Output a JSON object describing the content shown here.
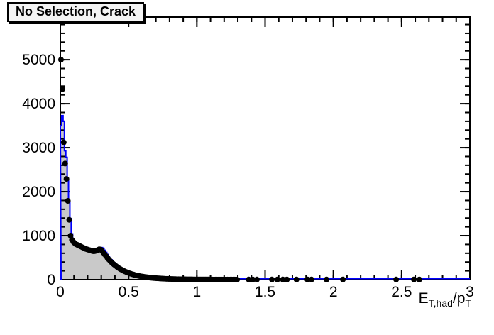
{
  "title": "No Selection, Crack",
  "colors": {
    "background": "#ffffff",
    "frame": "#000000",
    "hist_fill": "#c9c9c9",
    "hist_line": "#0000ff",
    "marker": "#000000",
    "title_box_bg": "#f4f4f4"
  },
  "chart_data": {
    "type": "bar",
    "subtype": "histogram-with-scatter-overlay",
    "title": "No Selection, Crack",
    "xlabel": "E_{T,had}/p_{T}",
    "xlabel_parts": {
      "base1": "E",
      "sub1": "T,had",
      "base2": "/p",
      "sub2": "T"
    },
    "ylabel": "",
    "xlim": [
      0,
      3
    ],
    "ylim": [
      0,
      5970
    ],
    "grid": false,
    "legend": false,
    "ticks_mirrored_all_sides": true,
    "x_ticks": [
      {
        "v": 0,
        "label": "0"
      },
      {
        "v": 0.5,
        "label": "0.5"
      },
      {
        "v": 1,
        "label": "1"
      },
      {
        "v": 1.5,
        "label": "1.5"
      },
      {
        "v": 2,
        "label": "2"
      },
      {
        "v": 2.5,
        "label": "2.5"
      },
      {
        "v": 3,
        "label": "3"
      }
    ],
    "y_ticks": [
      {
        "v": 0,
        "label": "0"
      },
      {
        "v": 1000,
        "label": "1000"
      },
      {
        "v": 2000,
        "label": "2000"
      },
      {
        "v": 3000,
        "label": "3000"
      },
      {
        "v": 4000,
        "label": "4000"
      },
      {
        "v": 5000,
        "label": "5000"
      }
    ],
    "x_minor_step": 0.1,
    "y_minor_step": 200,
    "hist": {
      "name": "filled-histogram",
      "fill": "#c9c9c9",
      "line": "#0000ff",
      "x_start": 0,
      "bin_width": 0.01,
      "values": [
        3500,
        3730,
        3600,
        2930,
        2780,
        2250,
        1790,
        1390,
        1040,
        900,
        860,
        830,
        810,
        800,
        790,
        780,
        768,
        755,
        742,
        728,
        714,
        702,
        692,
        683,
        675,
        668,
        665,
        670,
        684,
        705,
        728,
        712,
        668,
        620,
        572,
        528,
        488,
        450,
        415,
        383,
        353,
        326,
        301,
        279,
        259,
        240,
        223,
        207,
        192,
        178,
        165,
        153,
        142,
        132,
        123,
        114,
        106,
        98,
        91,
        85,
        79,
        73,
        68,
        63,
        59,
        55,
        51,
        47,
        44,
        41,
        38,
        35,
        33,
        31,
        29,
        27,
        25,
        23,
        22,
        20,
        19,
        18,
        17,
        16,
        15,
        14,
        13,
        13,
        12,
        11,
        11,
        10,
        9,
        9,
        8,
        8,
        8,
        7,
        7,
        6,
        6,
        6,
        5,
        5,
        5,
        5,
        4,
        4,
        4,
        4,
        4,
        3,
        3,
        3,
        3,
        3,
        3,
        3,
        2,
        2,
        2,
        2,
        2,
        2,
        2,
        2,
        2,
        2,
        2,
        2,
        1,
        1,
        1,
        1,
        1,
        1,
        1,
        1,
        1,
        1,
        1,
        1,
        1,
        1,
        1,
        1,
        1,
        1,
        1,
        1
      ]
    },
    "points": {
      "name": "data-markers",
      "marker": "filled-circle",
      "color": "#000000",
      "radius_px": 4,
      "dense": {
        "x_start": 0.005,
        "x_step": 0.01,
        "values": [
          5000,
          4330,
          3120,
          2640,
          2290,
          1790,
          1360,
          1000,
          905,
          860,
          830,
          805,
          790,
          775,
          760,
          745,
          730,
          715,
          700,
          690,
          680,
          670,
          660,
          650,
          645,
          650,
          660,
          675,
          690,
          685,
          655,
          615,
          575,
          535,
          495,
          460,
          425,
          395,
          365,
          340,
          315,
          292,
          270,
          250,
          232,
          215,
          199,
          184,
          170,
          158,
          146,
          135,
          125,
          116,
          107,
          99,
          92,
          85,
          79,
          73,
          68,
          63,
          58,
          54,
          50,
          46,
          43,
          40,
          37,
          34,
          32,
          30,
          28,
          26,
          24,
          22,
          21,
          19,
          18,
          17,
          16,
          15,
          14,
          13,
          12,
          11,
          11,
          10,
          9,
          9,
          8,
          8,
          7,
          7,
          6,
          6,
          6,
          5,
          5,
          5,
          4,
          4,
          4,
          4,
          3,
          3,
          3,
          3,
          3,
          3,
          2,
          2,
          2,
          2,
          2,
          2,
          2,
          2,
          2,
          2,
          2,
          2,
          2,
          2,
          2,
          2,
          2,
          2,
          2,
          2
        ]
      },
      "sparse_xy": [
        [
          1.38,
          3
        ],
        [
          1.41,
          3
        ],
        [
          1.44,
          3
        ],
        [
          1.55,
          3
        ],
        [
          1.59,
          3
        ],
        [
          1.63,
          3
        ],
        [
          1.66,
          3
        ],
        [
          1.73,
          3
        ],
        [
          1.81,
          3
        ],
        [
          1.84,
          3
        ],
        [
          1.95,
          3
        ],
        [
          2.07,
          3
        ],
        [
          2.46,
          3
        ],
        [
          2.59,
          3
        ],
        [
          2.63,
          3
        ]
      ]
    }
  }
}
